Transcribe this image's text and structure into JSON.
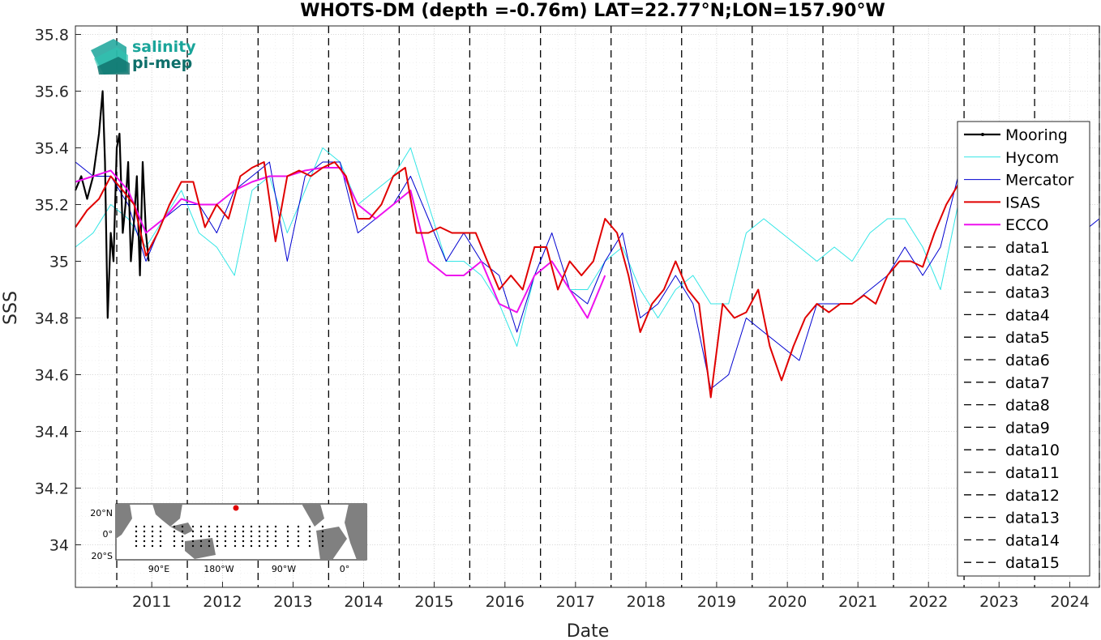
{
  "chart_data": {
    "type": "line",
    "title": "WHOTS-DM (depth =-0.76m) LAT=22.77°N;LON=157.90°W",
    "xlabel": "Date",
    "ylabel": "SSS",
    "xlim": [
      "2010-06-01",
      "2024-12-01"
    ],
    "ylim": [
      33.85,
      35.83
    ],
    "x_ticks": [
      "2011",
      "2012",
      "2013",
      "2014",
      "2015",
      "2016",
      "2017",
      "2018",
      "2019",
      "2020",
      "2021",
      "2022",
      "2023",
      "2024"
    ],
    "y_ticks": [
      34,
      34.2,
      34.4,
      34.6,
      34.8,
      35,
      35.2,
      35.4,
      35.6,
      35.8
    ],
    "y_tick_labels": [
      "34",
      "34.2",
      "34.4",
      "34.6",
      "34.8",
      "35",
      "35.2",
      "35.4",
      "35.6",
      "35.8"
    ],
    "grid": true,
    "legend_position": "right",
    "vertical_lines": [
      {
        "name": "data1",
        "x": "2011-01-01"
      },
      {
        "name": "data2",
        "x": "2012-01-01"
      },
      {
        "name": "data3",
        "x": "2013-01-01"
      },
      {
        "name": "data4",
        "x": "2014-01-01"
      },
      {
        "name": "data5",
        "x": "2015-01-01"
      },
      {
        "name": "data6",
        "x": "2016-01-01"
      },
      {
        "name": "data7",
        "x": "2017-01-01"
      },
      {
        "name": "data8",
        "x": "2018-01-01"
      },
      {
        "name": "data9",
        "x": "2019-01-01"
      },
      {
        "name": "data10",
        "x": "2020-01-01"
      },
      {
        "name": "data11",
        "x": "2021-01-01"
      },
      {
        "name": "data12",
        "x": "2022-01-01"
      },
      {
        "name": "data13",
        "x": "2023-01-01"
      },
      {
        "name": "data14",
        "x": "2024-01-01"
      },
      {
        "name": "data15",
        "x": "2024-12-01"
      }
    ],
    "series": [
      {
        "name": "Mooring",
        "color": "#000000",
        "x": [
          "2010-06-01",
          "2010-07-01",
          "2010-08-01",
          "2010-09-01",
          "2010-10-01",
          "2010-10-20",
          "2010-11-01",
          "2010-11-15",
          "2010-12-01",
          "2010-12-15",
          "2011-01-01",
          "2011-01-15",
          "2011-02-01",
          "2011-02-15",
          "2011-03-01",
          "2011-03-15",
          "2011-04-01",
          "2011-04-15",
          "2011-05-01",
          "2011-05-15",
          "2011-06-01",
          "2011-06-15"
        ],
        "values": [
          35.25,
          35.3,
          35.22,
          35.3,
          35.45,
          35.6,
          35.35,
          34.8,
          35.1,
          35.0,
          35.4,
          35.45,
          35.1,
          35.2,
          35.35,
          35.0,
          35.15,
          35.3,
          34.95,
          35.35,
          35.1,
          35.0
        ]
      },
      {
        "name": "Hycom",
        "color": "#33e6e6",
        "x": [
          "2010-06-01",
          "2010-09-01",
          "2010-12-01",
          "2011-03-01",
          "2011-06-01",
          "2011-09-01",
          "2011-12-01",
          "2012-03-01",
          "2012-06-01",
          "2012-09-01",
          "2012-12-01",
          "2013-03-01",
          "2013-06-01",
          "2013-09-01",
          "2013-12-01",
          "2014-03-01",
          "2014-06-01",
          "2014-09-01",
          "2014-12-01",
          "2015-03-01",
          "2015-06-01",
          "2015-09-01",
          "2015-12-01",
          "2016-03-01",
          "2016-06-01",
          "2016-09-01",
          "2016-12-01",
          "2017-03-01",
          "2017-06-01",
          "2017-09-01",
          "2017-12-01",
          "2018-03-01",
          "2018-06-01",
          "2018-09-01",
          "2018-12-01",
          "2019-03-01",
          "2019-06-01",
          "2019-09-01",
          "2019-12-01",
          "2020-03-01",
          "2020-06-01",
          "2020-09-01",
          "2020-12-01",
          "2021-03-01",
          "2021-06-01",
          "2021-09-01",
          "2021-12-01",
          "2022-03-01",
          "2022-06-01",
          "2022-09-01",
          "2022-12-01"
        ],
        "values": [
          35.05,
          35.1,
          35.2,
          35.15,
          35.05,
          35.15,
          35.25,
          35.1,
          35.05,
          34.95,
          35.25,
          35.3,
          35.1,
          35.25,
          35.4,
          35.35,
          35.2,
          35.25,
          35.3,
          35.4,
          35.2,
          35.0,
          35.0,
          34.95,
          34.85,
          34.7,
          34.95,
          35.0,
          34.9,
          34.9,
          35.0,
          35.05,
          34.9,
          34.8,
          34.9,
          34.95,
          34.85,
          34.85,
          35.1,
          35.15,
          35.1,
          35.05,
          35.0,
          35.05,
          35.0,
          35.1,
          35.15,
          35.15,
          35.05,
          34.9,
          35.2
        ]
      },
      {
        "name": "Mercator",
        "color": "#0000d0",
        "x": [
          "2010-06-01",
          "2010-09-01",
          "2010-12-01",
          "2011-03-01",
          "2011-06-01",
          "2011-09-01",
          "2011-12-01",
          "2012-03-01",
          "2012-06-01",
          "2012-09-01",
          "2012-12-01",
          "2013-03-01",
          "2013-06-01",
          "2013-09-01",
          "2013-12-01",
          "2014-03-01",
          "2014-06-01",
          "2014-09-01",
          "2014-12-01",
          "2015-03-01",
          "2015-06-01",
          "2015-09-01",
          "2015-12-01",
          "2016-03-01",
          "2016-06-01",
          "2016-09-01",
          "2016-12-01",
          "2017-03-01",
          "2017-06-01",
          "2017-09-01",
          "2017-12-01",
          "2018-03-01",
          "2018-06-01",
          "2018-09-01",
          "2018-12-01",
          "2019-03-01",
          "2019-06-01",
          "2019-09-01",
          "2019-12-01",
          "2020-03-01",
          "2020-06-01",
          "2020-09-01",
          "2020-12-01",
          "2021-03-01",
          "2021-06-01",
          "2021-09-01",
          "2021-12-01",
          "2022-03-01",
          "2022-06-01",
          "2022-09-01",
          "2022-12-01",
          "2023-03-01",
          "2023-06-01",
          "2023-09-01",
          "2023-12-01",
          "2024-03-01",
          "2024-06-01",
          "2024-09-01",
          "2024-12-01"
        ],
        "values": [
          35.35,
          35.3,
          35.3,
          35.2,
          35.0,
          35.15,
          35.2,
          35.2,
          35.1,
          35.25,
          35.3,
          35.35,
          35.0,
          35.3,
          35.35,
          35.35,
          35.1,
          35.15,
          35.2,
          35.3,
          35.15,
          35.0,
          35.1,
          35.0,
          34.95,
          34.75,
          34.95,
          35.1,
          34.9,
          34.85,
          35.0,
          35.1,
          34.8,
          34.85,
          34.95,
          34.85,
          34.55,
          34.6,
          34.8,
          34.75,
          34.7,
          34.65,
          34.85,
          34.85,
          34.85,
          34.9,
          34.95,
          35.05,
          34.95,
          35.05,
          35.3,
          35.25,
          35.3,
          35.25,
          35.2,
          35.25,
          35.2,
          35.1,
          35.15
        ]
      },
      {
        "name": "ISAS",
        "color": "#e00000",
        "x": [
          "2010-06-01",
          "2010-08-01",
          "2010-10-01",
          "2010-12-01",
          "2011-02-01",
          "2011-04-01",
          "2011-06-01",
          "2011-08-01",
          "2011-10-01",
          "2011-12-01",
          "2012-02-01",
          "2012-04-01",
          "2012-06-01",
          "2012-08-01",
          "2012-10-01",
          "2012-12-01",
          "2013-02-01",
          "2013-04-01",
          "2013-06-01",
          "2013-08-01",
          "2013-10-01",
          "2013-12-01",
          "2014-02-01",
          "2014-04-01",
          "2014-06-01",
          "2014-08-01",
          "2014-10-01",
          "2014-12-01",
          "2015-02-01",
          "2015-04-01",
          "2015-06-01",
          "2015-08-01",
          "2015-10-01",
          "2015-12-01",
          "2016-02-01",
          "2016-04-01",
          "2016-06-01",
          "2016-08-01",
          "2016-10-01",
          "2016-12-01",
          "2017-02-01",
          "2017-04-01",
          "2017-06-01",
          "2017-08-01",
          "2017-10-01",
          "2017-12-01",
          "2018-02-01",
          "2018-04-01",
          "2018-06-01",
          "2018-08-01",
          "2018-10-01",
          "2018-12-01",
          "2019-02-01",
          "2019-04-01",
          "2019-06-01",
          "2019-08-01",
          "2019-10-01",
          "2019-12-01",
          "2020-02-01",
          "2020-04-01",
          "2020-06-01",
          "2020-08-01",
          "2020-10-01",
          "2020-12-01",
          "2021-02-01",
          "2021-04-01",
          "2021-06-01",
          "2021-08-01",
          "2021-10-01",
          "2021-12-01",
          "2022-02-01",
          "2022-04-01",
          "2022-06-01",
          "2022-08-01",
          "2022-10-01",
          "2022-12-01"
        ],
        "values": [
          35.12,
          35.18,
          35.22,
          35.3,
          35.25,
          35.2,
          35.02,
          35.1,
          35.2,
          35.28,
          35.28,
          35.12,
          35.2,
          35.15,
          35.3,
          35.33,
          35.35,
          35.07,
          35.3,
          35.32,
          35.3,
          35.33,
          35.35,
          35.3,
          35.15,
          35.15,
          35.2,
          35.3,
          35.33,
          35.1,
          35.1,
          35.12,
          35.1,
          35.1,
          35.1,
          35.0,
          34.9,
          34.95,
          34.9,
          35.05,
          35.05,
          34.9,
          35.0,
          34.95,
          35.0,
          35.15,
          35.1,
          34.95,
          34.75,
          34.85,
          34.9,
          35.0,
          34.9,
          34.85,
          34.52,
          34.85,
          34.8,
          34.82,
          34.9,
          34.7,
          34.58,
          34.7,
          34.8,
          34.85,
          34.82,
          34.85,
          34.85,
          34.88,
          34.85,
          34.95,
          35.0,
          35.0,
          34.98,
          35.1,
          35.2,
          35.27
        ]
      },
      {
        "name": "ECCO",
        "color": "#ee11ee",
        "x": [
          "2010-06-01",
          "2010-09-01",
          "2010-12-01",
          "2011-03-01",
          "2011-06-01",
          "2011-09-01",
          "2011-12-01",
          "2012-03-01",
          "2012-06-01",
          "2012-09-01",
          "2012-12-01",
          "2013-03-01",
          "2013-06-01",
          "2013-09-01",
          "2013-12-01",
          "2014-03-01",
          "2014-06-01",
          "2014-09-01",
          "2014-12-01",
          "2015-03-01",
          "2015-06-01",
          "2015-09-01",
          "2015-12-01",
          "2016-03-01",
          "2016-06-01",
          "2016-09-01",
          "2016-12-01",
          "2017-03-01",
          "2017-06-01",
          "2017-09-01",
          "2017-12-01"
        ],
        "values": [
          35.28,
          35.3,
          35.32,
          35.25,
          35.1,
          35.15,
          35.22,
          35.2,
          35.2,
          35.25,
          35.28,
          35.3,
          35.3,
          35.32,
          35.33,
          35.33,
          35.2,
          35.15,
          35.2,
          35.25,
          35.0,
          34.95,
          34.95,
          35.0,
          34.85,
          34.82,
          34.95,
          35.0,
          34.9,
          34.8,
          34.95
        ]
      }
    ]
  },
  "logo": {
    "line1": "salinity",
    "line2": "pi-mep"
  },
  "inset_map": {
    "y_labels": [
      "20°N",
      "0°",
      "20°S"
    ],
    "x_labels": [
      "90°E",
      "180°W",
      "90°W",
      "0°"
    ],
    "land_color": "#808080",
    "marker_color": "#e00000"
  }
}
